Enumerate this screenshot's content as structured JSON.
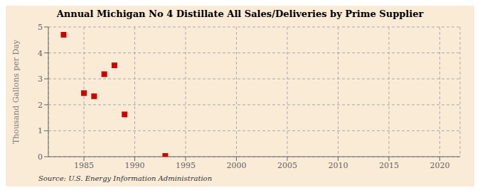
{
  "chart_data": {
    "type": "scatter",
    "title": "Annual Michigan No 4 Distillate All Sales/Deliveries by Prime Supplier",
    "ylabel": "Thousand Gallons per Day",
    "source": "Source: U.S. Energy Information Administration",
    "x": [
      1983,
      1985,
      1986,
      1987,
      1988,
      1989,
      1993
    ],
    "values": [
      4.7,
      2.45,
      2.33,
      3.18,
      3.52,
      1.63,
      0.03
    ],
    "color": "#cc0000",
    "marker": "square",
    "xlim": [
      1981.5,
      2022
    ],
    "ylim": [
      0,
      5
    ],
    "xticks": [
      1985,
      1990,
      1995,
      2000,
      2005,
      2010,
      2015,
      2020
    ],
    "yticks": [
      0,
      1,
      2,
      3,
      4,
      5
    ],
    "grid": true
  }
}
